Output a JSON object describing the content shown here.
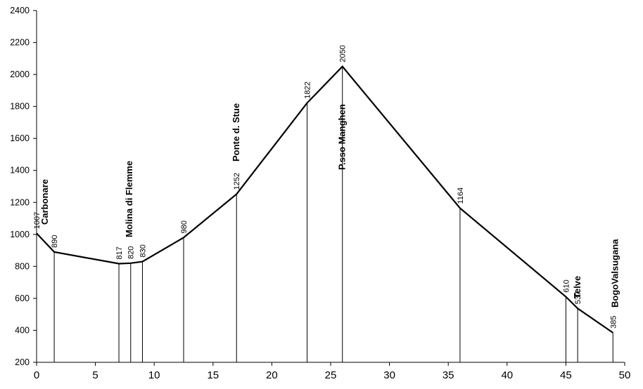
{
  "chart_data": {
    "type": "line",
    "title": "",
    "xlabel": "",
    "ylabel": "",
    "xlim": [
      0,
      50
    ],
    "ylim": [
      200,
      2400
    ],
    "x_ticks": [
      0,
      5,
      10,
      15,
      20,
      25,
      30,
      35,
      40,
      45,
      50
    ],
    "y_ticks": [
      200,
      400,
      600,
      800,
      1000,
      1200,
      1400,
      1600,
      1800,
      2000,
      2200,
      2400
    ],
    "grid": false,
    "series": [
      {
        "x": [
          0,
          1.5,
          7,
          8,
          9,
          12.5,
          17,
          23,
          26,
          36,
          45,
          46,
          49
        ],
        "values": [
          1007,
          890,
          817,
          820,
          830,
          980,
          1252,
          1822,
          2050,
          1164,
          610,
          537,
          385
        ]
      }
    ],
    "point_labels": [
      "1007",
      "890",
      "817",
      "820",
      "830",
      "980",
      "1252",
      "1822",
      "2050",
      "1164",
      "610",
      "537",
      "385"
    ],
    "places": [
      {
        "name": "Carbonare",
        "x": 0
      },
      {
        "name": "Molina di Flemme",
        "x": 8
      },
      {
        "name": "Ponte d. Stue",
        "x": 17
      },
      {
        "name": "P.sso Manghen",
        "x": 26
      },
      {
        "name": "Telve",
        "x": 46
      },
      {
        "name": "BogoValsugana",
        "x": 49
      }
    ]
  }
}
